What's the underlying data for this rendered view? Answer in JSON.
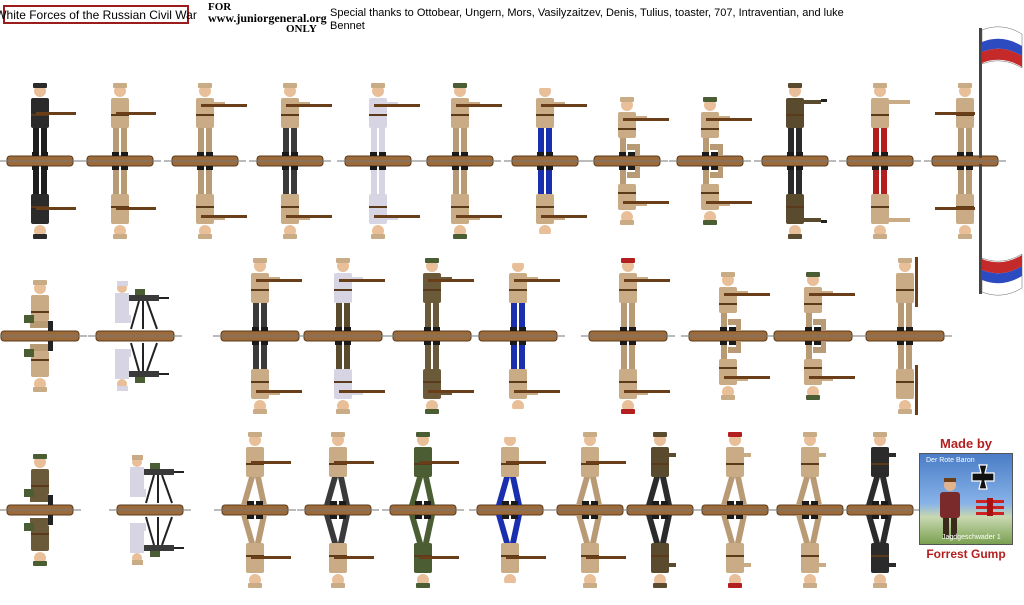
{
  "header": {
    "title": "White Forces of the Russian Civil War",
    "for_label": "FOR",
    "site": "www.juniorgeneral.org",
    "only_label": "ONLY",
    "thanks": "Special thanks to Ottobear, Ungern, Mors, Vasilyzaitzev, Denis, Tulius, toaster, 707, Intraventian,  and luke Bennet"
  },
  "credit": {
    "made_by": "Made by",
    "author": "Forrest Gump",
    "pic_top": "Der Rote Baron",
    "pic_bottom": "Jagdgeschwader 1"
  },
  "colors": {
    "base_brown": "#9c6b3c",
    "khaki": "#c9ab86",
    "dark_uniform": "#2b2b2b",
    "sailor_blue": "#1a2fae",
    "grey_coat": "#d7d5e3",
    "red_breeches": "#b31e1e",
    "olive": "#4b5d33",
    "brown_coat": "#5a4a2e",
    "rifle": "#6b3e1a",
    "frame_red": "#9b1c1c"
  },
  "figure_rows": [
    {
      "figures": [
        {
          "icon": "soldier-rifle-icon",
          "coat": "#2b2b2b",
          "legs": "#1e1e1e",
          "hat": "#2b2b2b",
          "pose": "rifle"
        },
        {
          "icon": "soldier-rifle-icon",
          "coat": "#c9ab86",
          "legs": "#b89a74",
          "hat": "#c9ab86",
          "pose": "rifle"
        },
        {
          "icon": "soldier-aim-icon",
          "coat": "#c9ab86",
          "legs": "#b89a74",
          "hat": "#c9ab86",
          "pose": "aim"
        },
        {
          "icon": "soldier-aim-icon",
          "coat": "#c9ab86",
          "legs": "#3a3a3a",
          "hat": "#c9ab86",
          "pose": "aim"
        },
        {
          "icon": "soldier-aim-icon",
          "coat": "#d7d5e3",
          "legs": "#d7d5e3",
          "hat": "#c9ab86",
          "pose": "aim"
        },
        {
          "icon": "soldier-aim-icon",
          "coat": "#c9ab86",
          "legs": "#b89a74",
          "hat": "#4b5d33",
          "pose": "aim"
        },
        {
          "icon": "sailor-aim-icon",
          "coat": "#c9ab86",
          "legs": "#1a2fae",
          "hat": "#ffffff",
          "pose": "aim"
        },
        {
          "icon": "soldier-kneel-icon",
          "coat": "#c9ab86",
          "legs": "#b89a74",
          "hat": "#c9ab86",
          "pose": "kneel"
        },
        {
          "icon": "soldier-kneel-icon",
          "coat": "#c9ab86",
          "legs": "#b89a74",
          "hat": "#4b5d33",
          "pose": "kneel"
        },
        {
          "icon": "officer-pistol-icon",
          "coat": "#5a4a2e",
          "legs": "#2b2b2b",
          "hat": "#5a4a2e",
          "pose": "pistol"
        },
        {
          "icon": "officer-pointing-icon",
          "coat": "#c9ab86",
          "legs": "#b31e1e",
          "hat": "#c9ab86",
          "pose": "point"
        },
        {
          "icon": "flag-bearer-icon",
          "coat": "#c9ab86",
          "legs": "#b89a74",
          "hat": "#c9ab86",
          "pose": "flag"
        }
      ]
    },
    {
      "figures": [
        {
          "icon": "soldier-sitting-icon",
          "coat": "#c9ab86",
          "legs": "#b89a74",
          "hat": "#c9ab86",
          "pose": "sit"
        },
        {
          "icon": "machine-gun-crew-icon",
          "coat": "#d7d5e3",
          "legs": "#d7d5e3",
          "hat": "#d7d5e3",
          "pose": "mg"
        },
        {
          "icon": "soldier-aim-icon",
          "coat": "#c9ab86",
          "legs": "#3a3a3a",
          "hat": "#c9ab86",
          "pose": "aim"
        },
        {
          "icon": "soldier-aim-icon",
          "coat": "#d7d5e3",
          "legs": "#5a4a2e",
          "hat": "#c9ab86",
          "pose": "aim"
        },
        {
          "icon": "soldier-aim-icon",
          "coat": "#6b5a3a",
          "legs": "#6b5a3a",
          "hat": "#4b5d33",
          "pose": "aim"
        },
        {
          "icon": "sailor-aim-icon",
          "coat": "#c9ab86",
          "legs": "#1a2fae",
          "hat": "#ffffff",
          "pose": "aim"
        },
        {
          "icon": "soldier-aim-icon",
          "coat": "#c9ab86",
          "legs": "#b89a74",
          "hat": "#b31e1e",
          "pose": "aim"
        },
        {
          "icon": "soldier-kneel-icon",
          "coat": "#c9ab86",
          "legs": "#b89a74",
          "hat": "#c9ab86",
          "pose": "kneel"
        },
        {
          "icon": "soldier-kneel-icon",
          "coat": "#c9ab86",
          "legs": "#b89a74",
          "hat": "#4b5d33",
          "pose": "kneel"
        },
        {
          "icon": "soldier-present-arms-icon",
          "coat": "#c9ab86",
          "legs": "#b89a74",
          "hat": "#c9ab86",
          "pose": "present"
        }
      ]
    },
    {
      "figures": [
        {
          "icon": "soldier-crouch-icon",
          "coat": "#6b5a3a",
          "legs": "#6b5a3a",
          "hat": "#4b5d33",
          "pose": "sit"
        },
        {
          "icon": "machine-gun-crew-icon",
          "coat": "#d7d5e3",
          "legs": "#d7d5e3",
          "hat": "#c9ab86",
          "pose": "mg"
        },
        {
          "icon": "soldier-march-icon",
          "coat": "#c9ab86",
          "legs": "#b89a74",
          "hat": "#c9ab86",
          "pose": "march"
        },
        {
          "icon": "soldier-march-icon",
          "coat": "#c9ab86",
          "legs": "#3a3a3a",
          "hat": "#c9ab86",
          "pose": "march"
        },
        {
          "icon": "soldier-advance-icon",
          "coat": "#4b5d33",
          "legs": "#4b5d33",
          "hat": "#4b5d33",
          "pose": "advance"
        },
        {
          "icon": "sailor-advance-icon",
          "coat": "#c9ab86",
          "legs": "#1a2fae",
          "hat": "#ffffff",
          "pose": "advance"
        },
        {
          "icon": "soldier-advance-icon",
          "coat": "#c9ab86",
          "legs": "#b89a74",
          "hat": "#c9ab86",
          "pose": "advance"
        },
        {
          "icon": "soldier-charge-icon",
          "coat": "#5a4a2e",
          "legs": "#2b2b2b",
          "hat": "#5a4a2e",
          "pose": "walk"
        },
        {
          "icon": "soldier-charge-icon",
          "coat": "#c9ab86",
          "legs": "#b89a74",
          "hat": "#b31e1e",
          "pose": "walk"
        },
        {
          "icon": "soldier-charge-icon",
          "coat": "#c9ab86",
          "legs": "#b89a74",
          "hat": "#c9ab86",
          "pose": "walk"
        },
        {
          "icon": "soldier-charge-icon",
          "coat": "#2b2b2b",
          "legs": "#2b2b2b",
          "hat": "#c9ab86",
          "pose": "walk"
        }
      ]
    }
  ]
}
